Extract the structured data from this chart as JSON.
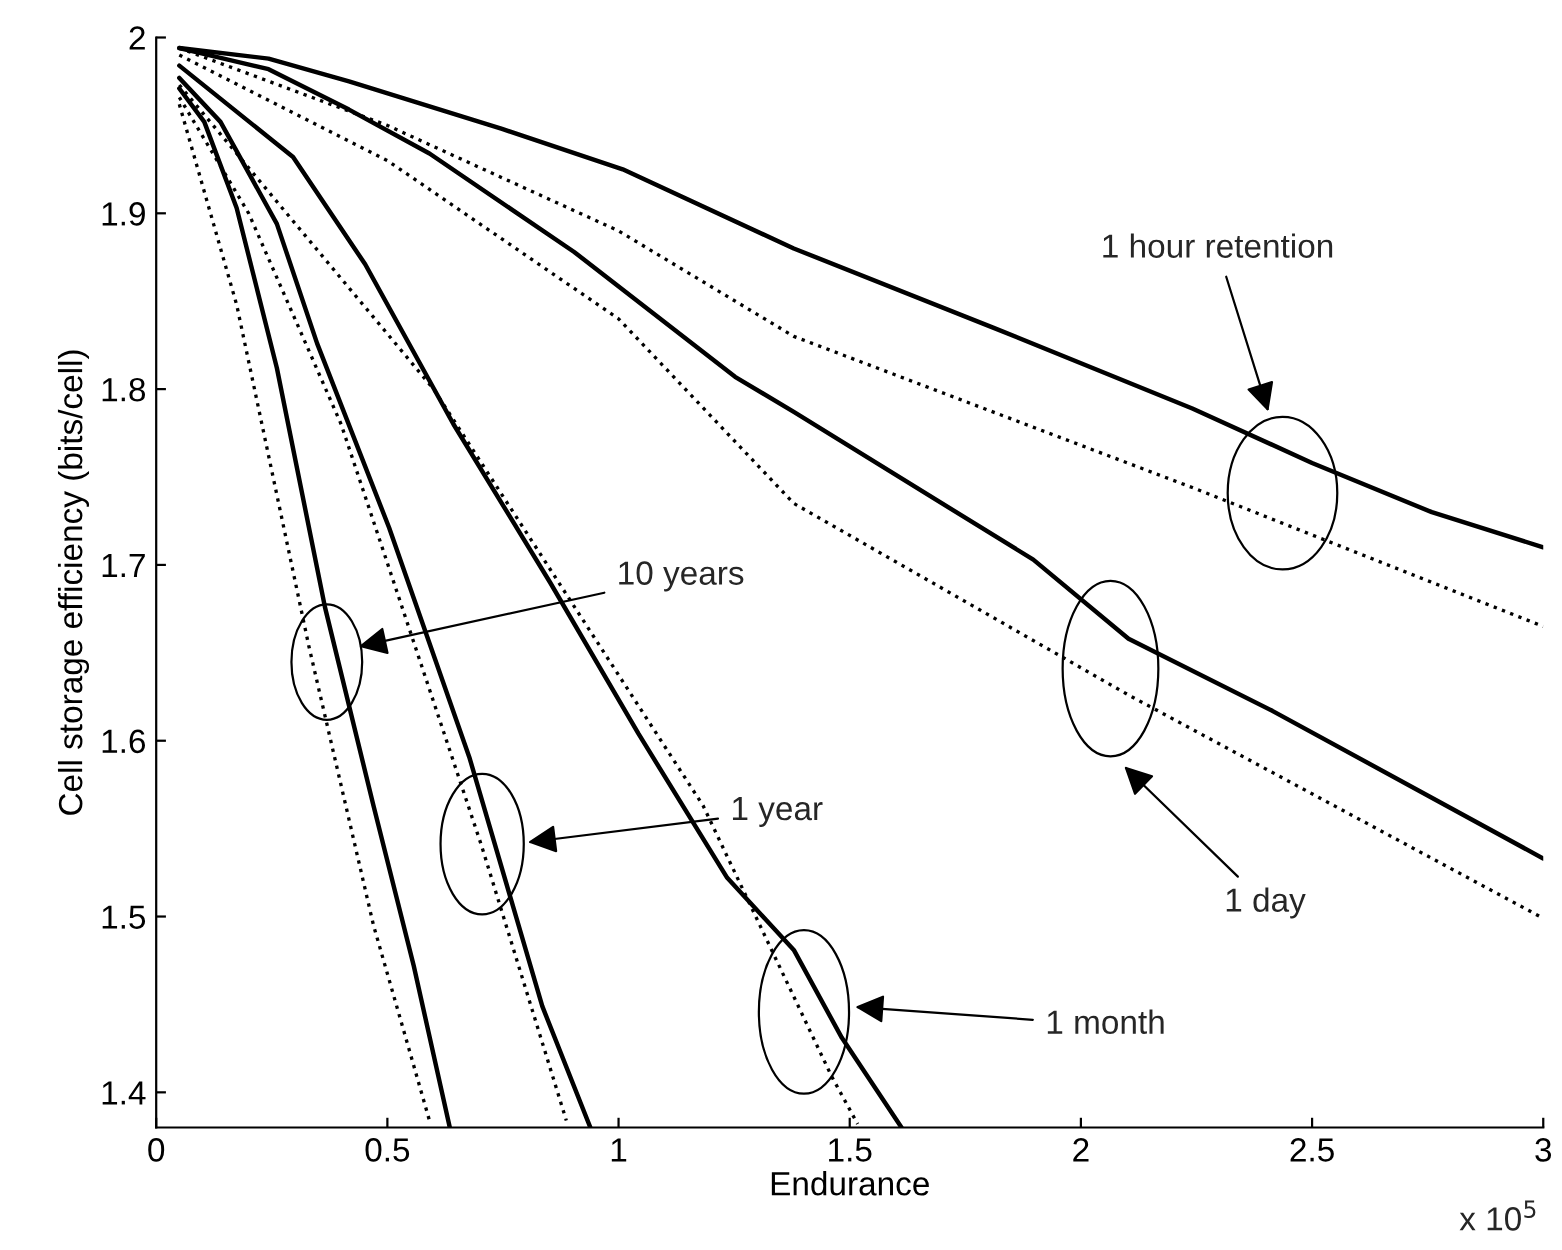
{
  "chart_data": {
    "type": "line",
    "xlabel": "Endurance",
    "ylabel": "Cell storage efficiency (bits/cell)",
    "xlim": [
      0,
      3
    ],
    "ylim": [
      1.38,
      2
    ],
    "xticks": [
      0,
      0.5,
      1,
      1.5,
      2,
      2.5,
      3
    ],
    "yticks": [
      1.4,
      1.5,
      1.6,
      1.7,
      1.8,
      1.9,
      2
    ],
    "grid": false,
    "series": [
      {
        "color": "#000000",
        "line_style": "solid",
        "x": [
          0.05,
          0.243,
          0.417,
          0.748,
          1.009,
          1.379,
          1.81,
          2.241,
          2.5,
          2.759,
          3.0
        ],
        "values": [
          1.994,
          1.988,
          1.975,
          1.948,
          1.925,
          1.88,
          1.835,
          1.789,
          1.758,
          1.73,
          1.71
        ]
      },
      {
        "color": "#000000",
        "line_style": "dotted",
        "x": [
          0.05,
          0.5,
          1.0,
          1.379,
          2.241,
          3.0
        ],
        "values": [
          1.994,
          1.95,
          1.89,
          1.83,
          1.744,
          1.665
        ]
      },
      {
        "color": "#000000",
        "line_style": "solid",
        "x": [
          0.05,
          0.243,
          0.417,
          0.591,
          0.904,
          1.252,
          1.379,
          1.897,
          2.103,
          2.414,
          3.0
        ],
        "values": [
          1.994,
          1.982,
          1.959,
          1.934,
          1.878,
          1.807,
          1.787,
          1.703,
          1.658,
          1.617,
          1.533
        ]
      },
      {
        "color": "#000000",
        "line_style": "dotted",
        "x": [
          0.05,
          0.5,
          1.0,
          1.379,
          2.103,
          3.0
        ],
        "values": [
          1.99,
          1.93,
          1.84,
          1.735,
          1.626,
          1.499
        ]
      },
      {
        "color": "#000000",
        "line_style": "solid",
        "x": [
          0.05,
          0.296,
          0.452,
          0.643,
          0.852,
          1.043,
          1.235,
          1.379,
          1.483,
          1.612
        ],
        "values": [
          1.984,
          1.932,
          1.871,
          1.78,
          1.69,
          1.604,
          1.522,
          1.481,
          1.431,
          1.38
        ]
      },
      {
        "color": "#000000",
        "line_style": "dotted",
        "x": [
          0.05,
          0.6,
          1.183,
          1.461,
          1.517
        ],
        "values": [
          1.973,
          1.8,
          1.563,
          1.409,
          1.382
        ]
      },
      {
        "color": "#000000",
        "line_style": "solid",
        "x": [
          0.05,
          0.139,
          0.261,
          0.348,
          0.504,
          0.678,
          0.835,
          0.939
        ],
        "values": [
          1.977,
          1.952,
          1.894,
          1.826,
          1.721,
          1.59,
          1.449,
          1.38
        ]
      },
      {
        "color": "#000000",
        "line_style": "dotted",
        "x": [
          0.05,
          0.2,
          0.4,
          0.704,
          0.887
        ],
        "values": [
          1.966,
          1.9,
          1.78,
          1.54,
          1.384
        ]
      },
      {
        "color": "#000000",
        "line_style": "solid",
        "x": [
          0.05,
          0.104,
          0.174,
          0.261,
          0.365,
          0.47,
          0.557,
          0.635
        ],
        "values": [
          1.971,
          1.952,
          1.903,
          1.812,
          1.676,
          1.563,
          1.472,
          1.38
        ]
      },
      {
        "color": "#000000",
        "line_style": "dotted",
        "x": [
          0.05,
          0.174,
          0.33,
          0.47,
          0.591
        ],
        "values": [
          1.962,
          1.848,
          1.654,
          1.495,
          1.384
        ]
      }
    ],
    "annotations": [
      "1 hour retention",
      "1 day",
      "10 years",
      "1 year",
      "1 month",
      "x 10$^{5}$"
    ]
  }
}
